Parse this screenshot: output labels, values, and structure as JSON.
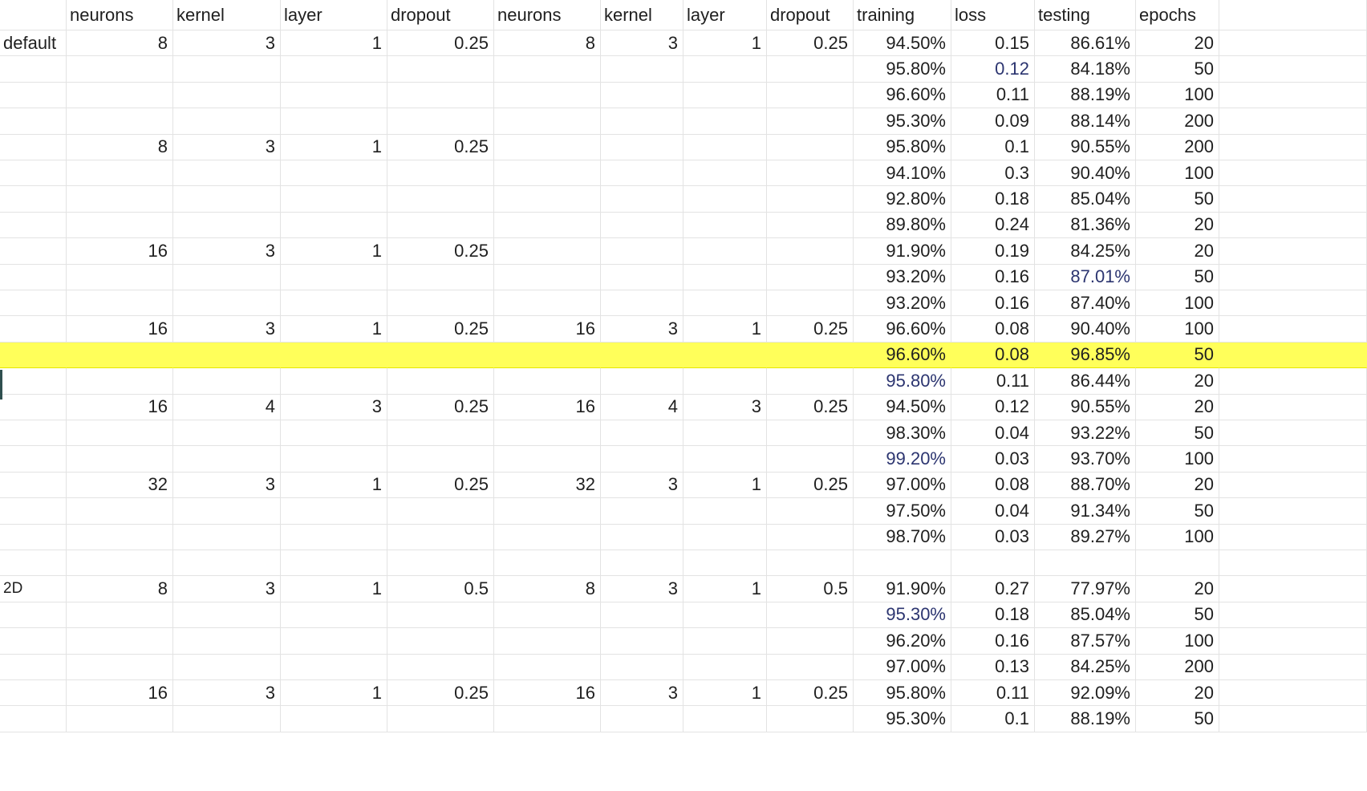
{
  "columns": [
    "",
    "neurons",
    "kernel",
    "layer",
    "dropout",
    "neurons",
    "kernel",
    "layer",
    "dropout",
    "training",
    "loss",
    "testing",
    "epochs",
    ""
  ],
  "rows": [
    [
      "default",
      "8",
      "3",
      "1",
      "0.25",
      "8",
      "3",
      "1",
      "0.25",
      "94.50%",
      "0.15",
      "86.61%",
      "20"
    ],
    [
      "",
      "",
      "",
      "",
      "",
      "",
      "",
      "",
      "",
      "95.80%",
      "0.12",
      "84.18%",
      "50"
    ],
    [
      "",
      "",
      "",
      "",
      "",
      "",
      "",
      "",
      "",
      "96.60%",
      "0.11",
      "88.19%",
      "100"
    ],
    [
      "",
      "",
      "",
      "",
      "",
      "",
      "",
      "",
      "",
      "95.30%",
      "0.09",
      "88.14%",
      "200"
    ],
    [
      "",
      "8",
      "3",
      "1",
      "0.25",
      "",
      "",
      "",
      "",
      "95.80%",
      "0.1",
      "90.55%",
      "200"
    ],
    [
      "",
      "",
      "",
      "",
      "",
      "",
      "",
      "",
      "",
      "94.10%",
      "0.3",
      "90.40%",
      "100"
    ],
    [
      "",
      "",
      "",
      "",
      "",
      "",
      "",
      "",
      "",
      "92.80%",
      "0.18",
      "85.04%",
      "50"
    ],
    [
      "",
      "",
      "",
      "",
      "",
      "",
      "",
      "",
      "",
      "89.80%",
      "0.24",
      "81.36%",
      "20"
    ],
    [
      "",
      "16",
      "3",
      "1",
      "0.25",
      "",
      "",
      "",
      "",
      "91.90%",
      "0.19",
      "84.25%",
      "20"
    ],
    [
      "",
      "",
      "",
      "",
      "",
      "",
      "",
      "",
      "",
      "93.20%",
      "0.16",
      "87.01%",
      "50"
    ],
    [
      "",
      "",
      "",
      "",
      "",
      "",
      "",
      "",
      "",
      "93.20%",
      "0.16",
      "87.40%",
      "100"
    ],
    [
      "",
      "16",
      "3",
      "1",
      "0.25",
      "16",
      "3",
      "1",
      "0.25",
      "96.60%",
      "0.08",
      "90.40%",
      "100"
    ],
    [
      "",
      "",
      "",
      "",
      "",
      "",
      "",
      "",
      "",
      "96.60%",
      "0.08",
      "96.85%",
      "50"
    ],
    [
      "",
      "",
      "",
      "",
      "",
      "",
      "",
      "",
      "",
      "95.80%",
      "0.11",
      "86.44%",
      "20"
    ],
    [
      "",
      "16",
      "4",
      "3",
      "0.25",
      "16",
      "4",
      "3",
      "0.25",
      "94.50%",
      "0.12",
      "90.55%",
      "20"
    ],
    [
      "",
      "",
      "",
      "",
      "",
      "",
      "",
      "",
      "",
      "98.30%",
      "0.04",
      "93.22%",
      "50"
    ],
    [
      "",
      "",
      "",
      "",
      "",
      "",
      "",
      "",
      "",
      "99.20%",
      "0.03",
      "93.70%",
      "100"
    ],
    [
      "",
      "32",
      "3",
      "1",
      "0.25",
      "32",
      "3",
      "1",
      "0.25",
      "97.00%",
      "0.08",
      "88.70%",
      "20"
    ],
    [
      "",
      "",
      "",
      "",
      "",
      "",
      "",
      "",
      "",
      "97.50%",
      "0.04",
      "91.34%",
      "50"
    ],
    [
      "",
      "",
      "",
      "",
      "",
      "",
      "",
      "",
      "",
      "98.70%",
      "0.03",
      "89.27%",
      "100"
    ],
    [
      "",
      "",
      "",
      "",
      "",
      "",
      "",
      "",
      "",
      "",
      "",
      "",
      ""
    ],
    [
      "2D",
      "8",
      "3",
      "1",
      "0.5",
      "8",
      "3",
      "1",
      "0.5",
      "91.90%",
      "0.27",
      "77.97%",
      "20"
    ],
    [
      "",
      "",
      "",
      "",
      "",
      "",
      "",
      "",
      "",
      "95.30%",
      "0.18",
      "85.04%",
      "50"
    ],
    [
      "",
      "",
      "",
      "",
      "",
      "",
      "",
      "",
      "",
      "96.20%",
      "0.16",
      "87.57%",
      "100"
    ],
    [
      "",
      "",
      "",
      "",
      "",
      "",
      "",
      "",
      "",
      "97.00%",
      "0.13",
      "84.25%",
      "200"
    ],
    [
      "",
      "16",
      "3",
      "1",
      "0.25",
      "16",
      "3",
      "1",
      "0.25",
      "95.80%",
      "0.11",
      "92.09%",
      "20"
    ],
    [
      "",
      "",
      "",
      "",
      "",
      "",
      "",
      "",
      "",
      "95.30%",
      "0.1",
      "88.19%",
      "50"
    ]
  ],
  "highlight_color": "#ffff5a",
  "highlighted_row_index": 12,
  "blue_text_color": "#2c3570",
  "blue_cells": [
    [
      1,
      10
    ],
    [
      9,
      11
    ],
    [
      13,
      9
    ],
    [
      16,
      9
    ],
    [
      22,
      9
    ]
  ]
}
